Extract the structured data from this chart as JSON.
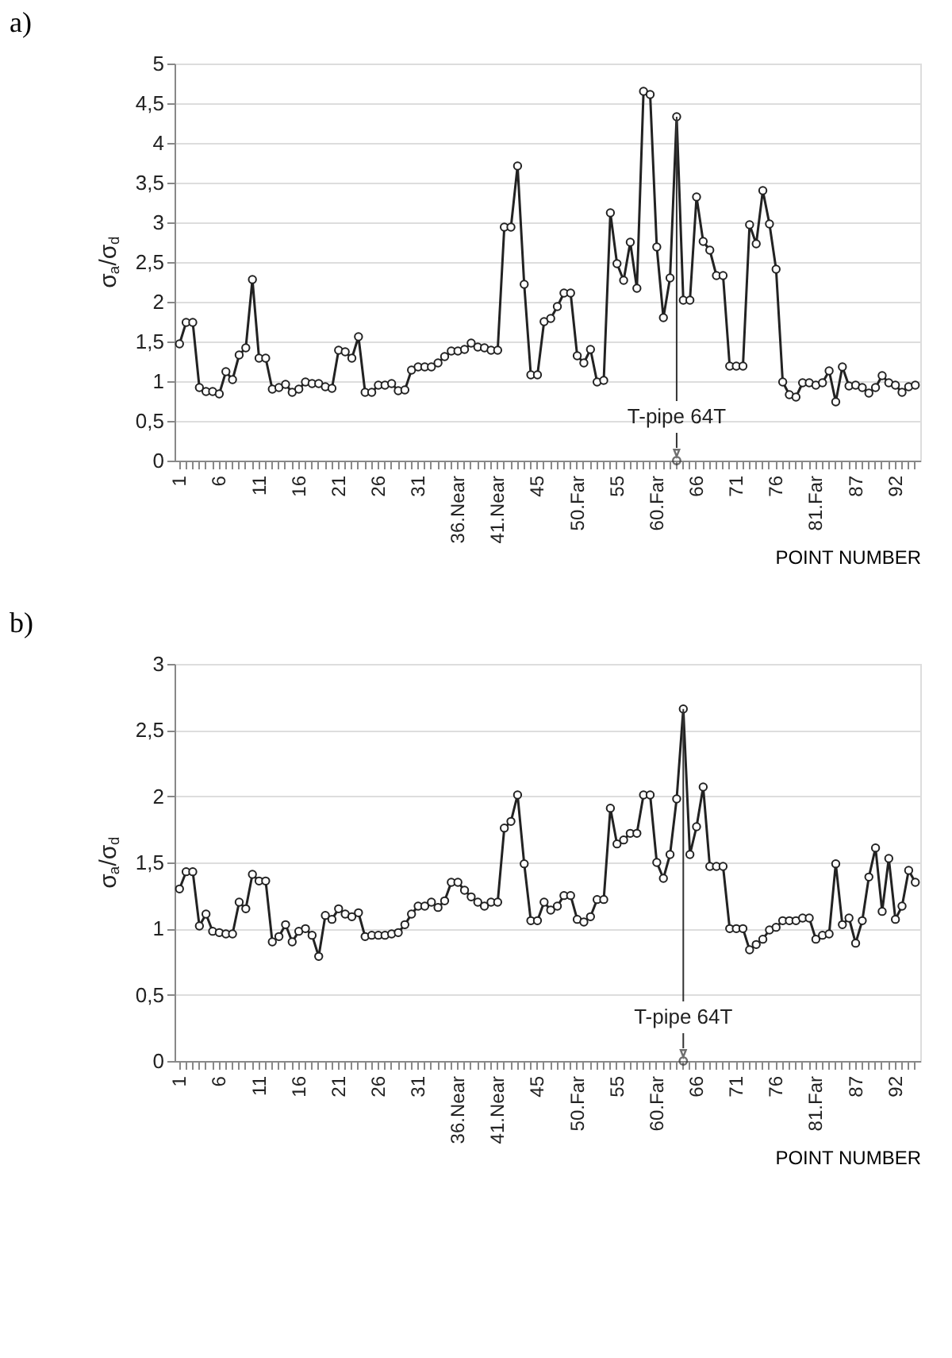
{
  "chart_data": [
    {
      "type": "line",
      "title": "a)",
      "xlabel": "POINT NUMBER",
      "ylabel": "σ$_{a}$/σ$_{d}$",
      "marker": "circle",
      "grid": "y",
      "legend": false,
      "categories": [
        "1",
        null,
        null,
        null,
        null,
        null,
        "6",
        null,
        null,
        null,
        null,
        null,
        "11",
        null,
        null,
        null,
        null,
        null,
        "16",
        null,
        null,
        null,
        null,
        null,
        "21",
        null,
        null,
        null,
        null,
        null,
        "26",
        null,
        null,
        null,
        null,
        null,
        "31",
        null,
        null,
        null,
        null,
        null,
        "36.Near",
        null,
        null,
        null,
        null,
        null,
        "41.Near",
        null,
        null,
        null,
        null,
        null,
        "45",
        null,
        null,
        null,
        null,
        null,
        "50.Far",
        null,
        null,
        null,
        null,
        null,
        "55",
        null,
        null,
        null,
        null,
        null,
        "60.Far",
        null,
        null,
        null,
        null,
        null,
        "66",
        null,
        null,
        null,
        null,
        null,
        "71",
        null,
        null,
        null,
        null,
        null,
        "76",
        null,
        null,
        null,
        null,
        null,
        "81.Far",
        null,
        null,
        null,
        null,
        null,
        "87",
        null,
        null,
        null,
        null,
        null,
        "92",
        null,
        null,
        null
      ],
      "series": [
        {
          "color": "#222222",
          "values": [
            1.47,
            1.74,
            1.74,
            0.92,
            0.87,
            0.87,
            0.84,
            1.12,
            1.02,
            1.33,
            1.42,
            2.28,
            1.29,
            1.29,
            0.9,
            0.92,
            0.96,
            0.86,
            0.9,
            0.99,
            0.97,
            0.97,
            0.93,
            0.91,
            1.39,
            1.37,
            1.29,
            1.56,
            0.86,
            0.86,
            0.95,
            0.95,
            0.97,
            0.88,
            0.89,
            1.14,
            1.18,
            1.18,
            1.18,
            1.23,
            1.31,
            1.38,
            1.38,
            1.4,
            1.48,
            1.43,
            1.42,
            1.39,
            1.39,
            2.94,
            2.94,
            3.71,
            2.22,
            1.08,
            1.08,
            1.75,
            1.79,
            1.94,
            2.11,
            2.11,
            1.32,
            1.23,
            1.4,
            0.99,
            1.01,
            3.12,
            2.48,
            2.27,
            2.75,
            2.17,
            4.65,
            4.61,
            2.69,
            1.8,
            2.3,
            4.33,
            2.02,
            2.02,
            3.32,
            2.76,
            2.65,
            2.33,
            2.33,
            1.19,
            1.19,
            1.19,
            2.97,
            2.73,
            3.4,
            2.98,
            2.41,
            0.99,
            0.83,
            0.8,
            0.98,
            0.98,
            0.95,
            0.98,
            1.13,
            0.74,
            1.18,
            0.94,
            0.95,
            0.92,
            0.85,
            0.92,
            1.07,
            0.98,
            0.95,
            0.86,
            0.93,
            0.95
          ]
        }
      ],
      "ylim": [
        0,
        5
      ],
      "yticks": [
        0,
        {
          "value": 0.5,
          "label": "0,5"
        },
        1,
        {
          "value": 1.5,
          "label": "1,5"
        },
        2,
        {
          "value": 2.5,
          "label": "2,5"
        },
        3,
        {
          "value": 3.5,
          "label": "3,5"
        },
        4,
        {
          "value": 4.5,
          "label": "4,5"
        },
        5
      ],
      "annotations": [
        {
          "text": "T-pipe 64T",
          "y": 4.33
        }
      ]
    },
    {
      "type": "line",
      "title": "b)",
      "xlabel": "POINT NUMBER",
      "ylabel": "σ$_{a}$/σ$_{d}$",
      "marker": "circle",
      "grid": "y",
      "legend": false,
      "categories": [
        "1",
        null,
        null,
        null,
        null,
        null,
        "6",
        null,
        null,
        null,
        null,
        null,
        "11",
        null,
        null,
        null,
        null,
        null,
        "16",
        null,
        null,
        null,
        null,
        null,
        "21",
        null,
        null,
        null,
        null,
        null,
        "26",
        null,
        null,
        null,
        null,
        null,
        "31",
        null,
        null,
        null,
        null,
        null,
        "36.Near",
        null,
        null,
        null,
        null,
        null,
        "41.Near",
        null,
        null,
        null,
        null,
        null,
        "45",
        null,
        null,
        null,
        null,
        null,
        "50.Far",
        null,
        null,
        null,
        null,
        null,
        "55",
        null,
        null,
        null,
        null,
        null,
        "60.Far",
        null,
        null,
        null,
        null,
        null,
        "66",
        null,
        null,
        null,
        null,
        null,
        "71",
        null,
        null,
        null,
        null,
        null,
        "76",
        null,
        null,
        null,
        null,
        null,
        "81.Far",
        null,
        null,
        null,
        null,
        null,
        "87",
        null,
        null,
        null,
        null,
        null,
        "92",
        null,
        null,
        null
      ],
      "series": [
        {
          "color": "#222222",
          "values": [
            1.3,
            1.43,
            1.43,
            1.02,
            1.11,
            0.98,
            0.97,
            0.96,
            0.96,
            1.2,
            1.15,
            1.41,
            1.36,
            1.36,
            0.9,
            0.94,
            1.03,
            0.9,
            0.98,
            1.0,
            0.95,
            0.79,
            1.1,
            1.07,
            1.15,
            1.11,
            1.09,
            1.12,
            0.94,
            0.95,
            0.95,
            0.95,
            0.96,
            0.97,
            1.03,
            1.11,
            1.17,
            1.17,
            1.2,
            1.16,
            1.21,
            1.35,
            1.35,
            1.29,
            1.24,
            1.2,
            1.17,
            1.2,
            1.2,
            1.76,
            1.81,
            2.01,
            1.49,
            1.06,
            1.06,
            1.2,
            1.14,
            1.17,
            1.25,
            1.25,
            1.07,
            1.05,
            1.09,
            1.22,
            1.22,
            1.91,
            1.64,
            1.67,
            1.72,
            1.72,
            2.01,
            2.01,
            1.5,
            1.38,
            1.56,
            1.98,
            2.66,
            1.56,
            1.77,
            2.07,
            1.47,
            1.47,
            1.47,
            1.0,
            1.0,
            1.0,
            0.84,
            0.88,
            0.92,
            0.99,
            1.01,
            1.06,
            1.06,
            1.06,
            1.08,
            1.08,
            0.92,
            0.95,
            0.96,
            1.49,
            1.03,
            1.08,
            0.89,
            1.06,
            1.39,
            1.61,
            1.13,
            1.53,
            1.07,
            1.17,
            1.44,
            1.35
          ]
        }
      ],
      "ylim": [
        0,
        3
      ],
      "yticks": [
        0,
        {
          "value": 0.5,
          "label": "0,5"
        },
        1,
        {
          "value": 1.5,
          "label": "1,5"
        },
        2,
        {
          "value": 2.5,
          "label": "2,5"
        },
        3
      ],
      "annotations": [
        {
          "text": "T-pipe 64T",
          "y": 2.66
        }
      ]
    }
  ]
}
